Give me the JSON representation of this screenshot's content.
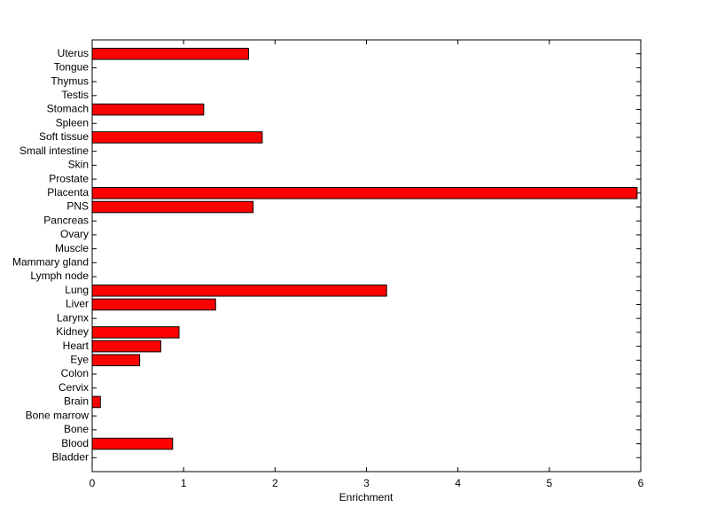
{
  "chart_data": {
    "type": "barh",
    "xlabel": "Enrichment",
    "categories": [
      "Bladder",
      "Blood",
      "Bone",
      "Bone marrow",
      "Brain",
      "Cervix",
      "Colon",
      "Eye",
      "Heart",
      "Kidney",
      "Larynx",
      "Liver",
      "Lung",
      "Lymph node",
      "Mammary gland",
      "Muscle",
      "Ovary",
      "Pancreas",
      "PNS",
      "Placenta",
      "Prostate",
      "Skin",
      "Small intestine",
      "Soft tissue",
      "Spleen",
      "Stomach",
      "Testis",
      "Thymus",
      "Tongue",
      "Uterus"
    ],
    "values": [
      0,
      0.88,
      0,
      0,
      0.09,
      0,
      0,
      0.52,
      0.75,
      0.95,
      0,
      1.35,
      3.22,
      0,
      0,
      0,
      0,
      0,
      1.76,
      5.96,
      0,
      0,
      0,
      1.86,
      0,
      1.22,
      0,
      0,
      0,
      1.71
    ],
    "color": "#ff0000",
    "xlim": [
      0,
      6
    ],
    "xticks": [
      0,
      1,
      2,
      3,
      4,
      5,
      6
    ]
  }
}
